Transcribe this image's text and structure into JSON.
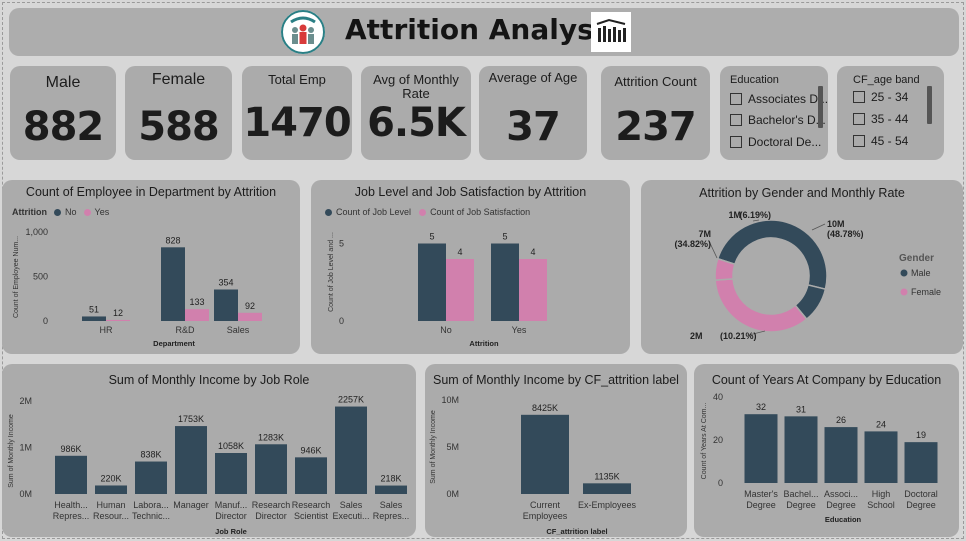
{
  "header": {
    "title": "Attrition Analysis"
  },
  "kpis": {
    "male": {
      "label": "Male",
      "value": "882"
    },
    "female": {
      "label": "Female",
      "value": "588"
    },
    "total": {
      "label": "Total Emp",
      "value": "1470"
    },
    "avg_rate": {
      "label_line1": "Avg of Monthly",
      "label_line2": "Rate",
      "value": "6.5K"
    },
    "avg_age": {
      "label": "Average of Age",
      "value": "37"
    },
    "attrition": {
      "label": "Attrition Count",
      "value": "237"
    }
  },
  "slicers": {
    "education": {
      "title": "Education",
      "items": [
        "Associates D...",
        "Bachelor's D...",
        "Doctoral De..."
      ]
    },
    "age_band": {
      "title": "CF_age band",
      "items": [
        "25 - 34",
        "35 - 44",
        "45 - 54"
      ]
    }
  },
  "colors": {
    "no": "#334a5a",
    "yes": "#d180ad",
    "card": "#ababab"
  },
  "chart_data": [
    {
      "id": "dept",
      "type": "bar",
      "title": "Count of Employee in Department by Attrition",
      "legend_title": "Attrition",
      "categories": [
        "HR",
        "R&D",
        "Sales"
      ],
      "series": [
        {
          "name": "No",
          "values": [
            51,
            828,
            354
          ]
        },
        {
          "name": "Yes",
          "values": [
            12,
            133,
            92
          ]
        }
      ],
      "xlabel": "Department",
      "ylabel": "Count of Employee Num...",
      "ylim": [
        0,
        1000
      ],
      "yticks": [
        "0",
        "500",
        "1,000"
      ]
    },
    {
      "id": "joblevel",
      "type": "bar",
      "title": "Job Level and Job Satisfaction by Attrition",
      "categories": [
        "No",
        "Yes"
      ],
      "series": [
        {
          "name": "Count of Job Level",
          "values": [
            5,
            5
          ]
        },
        {
          "name": "Count of Job Satisfaction",
          "values": [
            4,
            4
          ]
        }
      ],
      "xlabel": "Attrition",
      "ylabel": "Count of Job Level and ...",
      "ylim": [
        0,
        6
      ],
      "yticks": [
        "0",
        "5"
      ]
    },
    {
      "id": "gender",
      "type": "pie",
      "title": "Attrition by Gender and Monthly Rate",
      "legend_title": "Gender",
      "legend": [
        "Male",
        "Female"
      ],
      "slices": [
        {
          "label": "10M",
          "pct": "(48.78%)",
          "value": 48.78
        },
        {
          "label": "2M",
          "pct": "(10.21%)",
          "value": 10.21
        },
        {
          "label": "7M",
          "pct": "(34.82%)",
          "value": 34.82
        },
        {
          "label": "1M",
          "pct": "(6.19%)",
          "value": 6.19
        }
      ]
    },
    {
      "id": "jobrole",
      "type": "bar",
      "title": "Sum of Monthly Income by Job Role",
      "categories": [
        [
          "Health...",
          "Repres..."
        ],
        [
          "Human",
          "Resour..."
        ],
        [
          "Labora...",
          "Technic..."
        ],
        [
          "Manager"
        ],
        [
          "Manuf...",
          "Director"
        ],
        [
          "Research",
          "Director"
        ],
        [
          "Research",
          "Scientist"
        ],
        [
          "Sales",
          "Executi..."
        ],
        [
          "Sales",
          "Repres..."
        ]
      ],
      "values": [
        986,
        220,
        838,
        1753,
        1058,
        1283,
        946,
        2257,
        218
      ],
      "value_labels": [
        "986K",
        "220K",
        "838K",
        "1753K",
        "1058K",
        "1283K",
        "946K",
        "2257K",
        "218K"
      ],
      "xlabel": "Job Role",
      "ylabel": "Sum of Monthly Income",
      "ylim": [
        0,
        2400
      ],
      "yticks": [
        "0M",
        "1M",
        "2M"
      ]
    },
    {
      "id": "attrlabel",
      "type": "bar",
      "title": "Sum of Monthly Income by CF_attrition label",
      "categories": [
        [
          "Current",
          "Employees"
        ],
        [
          "Ex-Employees"
        ]
      ],
      "values": [
        8425,
        1135
      ],
      "value_labels": [
        "8425K",
        "1135K"
      ],
      "xlabel": "CF_attrition label",
      "ylabel": "Sum of Monthly Income",
      "ylim": [
        0,
        10000
      ],
      "yticks": [
        "0M",
        "5M",
        "10M"
      ]
    },
    {
      "id": "education",
      "type": "bar",
      "title": "Count of Years At Company by Education",
      "categories": [
        [
          "Master's",
          "Degree"
        ],
        [
          "Bachel...",
          "Degree"
        ],
        [
          "Associ...",
          "Degree"
        ],
        [
          "High",
          "School"
        ],
        [
          "Doctoral",
          "Degree"
        ]
      ],
      "values": [
        32,
        31,
        26,
        24,
        19
      ],
      "value_labels": [
        "32",
        "31",
        "26",
        "24",
        "19"
      ],
      "xlabel": "Education",
      "ylabel": "Count of Years At Com...",
      "ylim": [
        0,
        40
      ],
      "yticks": [
        "0",
        "20",
        "40"
      ]
    }
  ]
}
